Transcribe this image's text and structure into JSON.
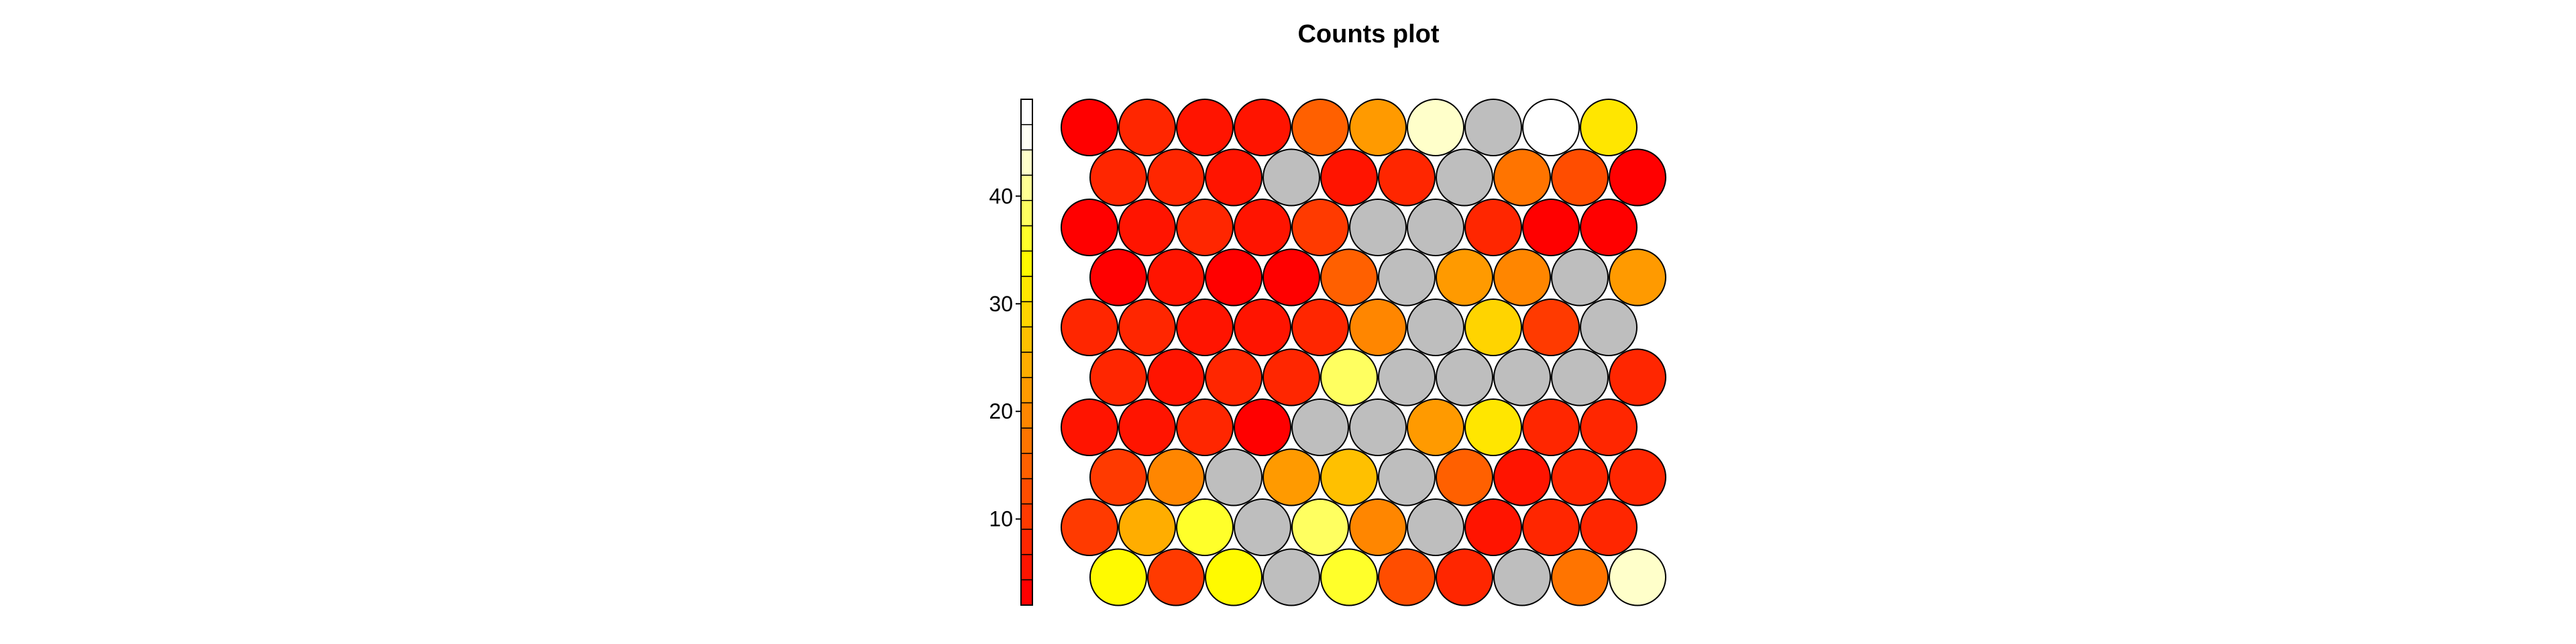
{
  "chart_data": {
    "type": "heatmap",
    "title": "Counts plot",
    "grid": "hexagonal",
    "rows": 10,
    "cols": 10,
    "color_scale": {
      "min": 2,
      "max": 49,
      "ticks": [
        10,
        20,
        30,
        40
      ],
      "colors": [
        "#ff0000",
        "#ff1400",
        "#ff2600",
        "#ff3a00",
        "#ff4d00",
        "#ff6000",
        "#ff7400",
        "#ff8600",
        "#ff9a00",
        "#ffad00",
        "#ffc000",
        "#ffd400",
        "#ffe600",
        "#fffa00",
        "#ffff2a",
        "#ffff60",
        "#ffff94",
        "#ffffca",
        "#fffff5",
        "#ffffff"
      ],
      "empty_color": "#bebebe"
    },
    "values": [
      [
        3,
        9,
        6,
        5,
        14,
        21,
        43,
        null,
        48,
        31
      ],
      [
        9,
        8,
        6,
        null,
        6,
        7,
        null,
        17,
        12,
        4
      ],
      [
        3,
        5,
        8,
        6,
        10,
        null,
        null,
        7,
        4,
        2
      ],
      [
        4,
        5,
        4,
        3,
        15,
        null,
        22,
        19,
        null,
        21
      ],
      [
        7,
        9,
        6,
        5,
        7,
        20,
        null,
        29,
        11,
        null
      ],
      [
        9,
        5,
        9,
        9,
        38,
        null,
        null,
        null,
        null,
        8
      ],
      [
        6,
        6,
        7,
        3,
        null,
        null,
        22,
        31,
        8,
        7
      ],
      [
        11,
        20,
        null,
        22,
        27,
        null,
        16,
        5,
        8,
        9
      ],
      [
        10,
        25,
        35,
        null,
        38,
        20,
        null,
        6,
        9,
        8
      ],
      [
        33,
        10,
        33,
        null,
        35,
        13,
        7,
        null,
        17,
        43
      ]
    ]
  }
}
